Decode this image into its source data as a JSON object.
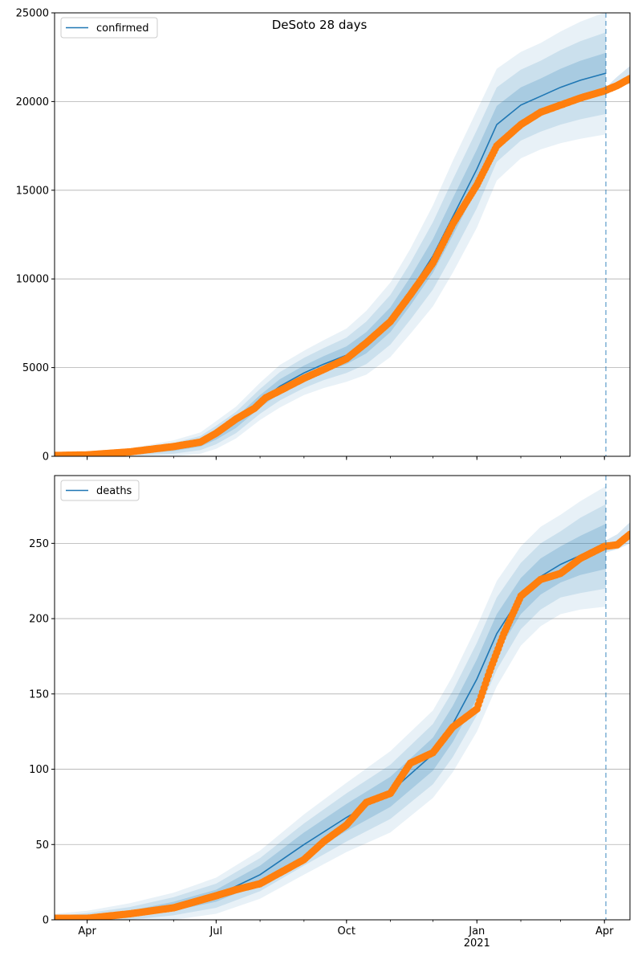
{
  "title": "DeSoto 28 days",
  "chart_data": [
    {
      "type": "line",
      "panel": "top",
      "legend": {
        "label": "confirmed",
        "placement": "top-left"
      },
      "ylim": [
        0,
        25000
      ],
      "yticks": [
        0,
        5000,
        10000,
        15000,
        20000,
        25000
      ],
      "xlim": [
        "2020-03-09",
        "2021-04-19"
      ],
      "xticks": [
        {
          "date": "2020-04-01",
          "label": "Apr"
        },
        {
          "date": "2020-07-01",
          "label": "Jul"
        },
        {
          "date": "2020-10-01",
          "label": "Oct"
        },
        {
          "date": "2021-01-01",
          "label": "Jan",
          "sublabel": "2021"
        },
        {
          "date": "2021-04-01",
          "label": "Apr"
        }
      ],
      "grid": "horizontal",
      "forecast_start": "2021-04-02",
      "model": {
        "name": "confirmed",
        "x": [
          "2020-03-09",
          "2020-04-01",
          "2020-05-01",
          "2020-06-01",
          "2020-06-20",
          "2020-07-01",
          "2020-07-15",
          "2020-08-01",
          "2020-08-15",
          "2020-09-01",
          "2020-09-15",
          "2020-10-01",
          "2020-10-15",
          "2020-11-01",
          "2020-11-15",
          "2020-12-01",
          "2020-12-15",
          "2021-01-01",
          "2021-01-15",
          "2021-02-01",
          "2021-02-15",
          "2021-03-01",
          "2021-03-15",
          "2021-04-02"
        ],
        "y": [
          0,
          60,
          200,
          450,
          750,
          1200,
          1900,
          3100,
          3950,
          4700,
          5200,
          5700,
          6400,
          7700,
          9300,
          11300,
          13500,
          16200,
          18700,
          19800,
          20300,
          20800,
          21200,
          21600
        ],
        "band_half_widths": [
          [
            0,
            30,
            80,
            150,
            200,
            260,
            300,
            350,
            400,
            420,
            450,
            500,
            600,
            700,
            800,
            950,
            1050,
            1100,
            1050,
            1000,
            1000,
            1050,
            1100,
            1150
          ],
          [
            0,
            60,
            160,
            300,
            400,
            520,
            600,
            700,
            800,
            850,
            900,
            1000,
            1200,
            1400,
            1600,
            1900,
            2100,
            2200,
            2100,
            2000,
            2000,
            2100,
            2200,
            2300
          ],
          [
            0,
            90,
            240,
            450,
            600,
            780,
            900,
            1050,
            1200,
            1250,
            1350,
            1500,
            1800,
            2100,
            2400,
            2850,
            3150,
            3300,
            3150,
            3000,
            3000,
            3150,
            3300,
            3450
          ]
        ]
      },
      "observed": {
        "x": [
          "2020-03-09",
          "2020-04-01",
          "2020-05-01",
          "2020-06-01",
          "2020-06-20",
          "2020-07-01",
          "2020-07-15",
          "2020-07-28",
          "2020-08-05",
          "2020-08-15",
          "2020-09-01",
          "2020-09-15",
          "2020-10-01",
          "2020-10-15",
          "2020-11-01",
          "2020-11-15",
          "2020-12-01",
          "2020-12-15",
          "2021-01-01",
          "2021-01-15",
          "2021-02-01",
          "2021-02-15",
          "2021-03-01",
          "2021-03-15",
          "2021-04-01",
          "2021-04-10",
          "2021-04-19"
        ],
        "y": [
          50,
          80,
          250,
          550,
          800,
          1300,
          2100,
          2700,
          3300,
          3700,
          4400,
          4900,
          5500,
          6400,
          7600,
          9100,
          10900,
          13100,
          15300,
          17500,
          18700,
          19400,
          19800,
          20200,
          20600,
          20900,
          21300
        ]
      },
      "forecast_band": {
        "x": [
          "2021-04-02",
          "2021-04-10",
          "2021-04-19"
        ],
        "lower": [
          20500,
          20800,
          21000
        ],
        "upper": [
          20800,
          21400,
          22000
        ]
      }
    },
    {
      "type": "line",
      "panel": "bottom",
      "legend": {
        "label": "deaths",
        "placement": "top-left"
      },
      "ylim": [
        0,
        295
      ],
      "yticks": [
        0,
        50,
        100,
        150,
        200,
        250
      ],
      "xlim": [
        "2020-03-09",
        "2021-04-19"
      ],
      "xticks": [
        {
          "date": "2020-04-01",
          "label": "Apr"
        },
        {
          "date": "2020-07-01",
          "label": "Jul"
        },
        {
          "date": "2020-10-01",
          "label": "Oct"
        },
        {
          "date": "2021-01-01",
          "label": "Jan",
          "sublabel": "2021"
        },
        {
          "date": "2021-04-01",
          "label": "Apr"
        }
      ],
      "grid": "horizontal",
      "forecast_start": "2021-04-02",
      "model": {
        "name": "deaths",
        "x": [
          "2020-03-09",
          "2020-04-01",
          "2020-05-01",
          "2020-06-01",
          "2020-07-01",
          "2020-08-01",
          "2020-09-01",
          "2020-10-01",
          "2020-11-01",
          "2020-12-01",
          "2020-12-15",
          "2021-01-01",
          "2021-01-15",
          "2021-02-01",
          "2021-02-15",
          "2021-03-01",
          "2021-03-15",
          "2021-04-02"
        ],
        "y": [
          0,
          1,
          4,
          9,
          16,
          30,
          50,
          68,
          85,
          110,
          130,
          160,
          190,
          215,
          228,
          236,
          242,
          248
        ],
        "band_half_widths": [
          [
            1,
            1.5,
            2,
            3,
            4,
            6,
            8,
            9,
            10,
            11,
            12,
            13,
            13,
            12,
            12,
            12,
            13,
            15
          ],
          [
            2.5,
            3.5,
            4.5,
            6,
            8,
            11,
            14,
            16,
            18,
            20,
            22,
            24,
            24,
            22,
            22,
            22,
            25,
            28
          ],
          [
            4,
            5,
            7,
            9,
            12,
            16,
            20,
            23,
            27,
            29,
            32,
            35,
            35,
            33,
            33,
            33,
            36,
            40
          ]
        ]
      },
      "observed": {
        "x": [
          "2020-03-09",
          "2020-04-01",
          "2020-05-01",
          "2020-06-01",
          "2020-07-01",
          "2020-07-15",
          "2020-08-01",
          "2020-09-01",
          "2020-09-15",
          "2020-10-01",
          "2020-10-15",
          "2020-11-01",
          "2020-11-15",
          "2020-12-01",
          "2020-12-15",
          "2021-01-01",
          "2021-01-10",
          "2021-01-20",
          "2021-02-01",
          "2021-02-15",
          "2021-03-01",
          "2021-03-15",
          "2021-04-01",
          "2021-04-10",
          "2021-04-19"
        ],
        "y": [
          1,
          1,
          4,
          8,
          16,
          20,
          24,
          40,
          52,
          63,
          78,
          84,
          104,
          111,
          128,
          140,
          165,
          190,
          215,
          226,
          230,
          240,
          248,
          249,
          256
        ]
      },
      "forecast_band": {
        "x": [
          "2021-04-02",
          "2021-04-10",
          "2021-04-19"
        ],
        "lower": [
          244,
          246,
          250
        ],
        "upper": [
          252,
          256,
          264
        ]
      }
    }
  ]
}
